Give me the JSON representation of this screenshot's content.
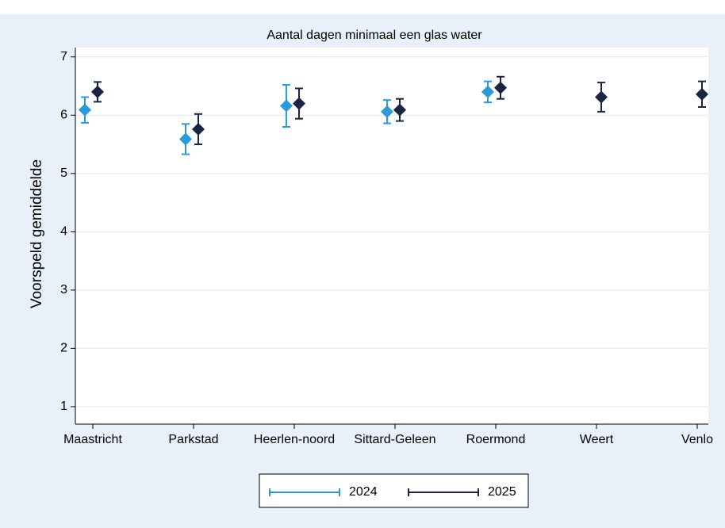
{
  "chart_data": {
    "type": "errorbar",
    "title": "Aantal dagen minimaal een glas water",
    "y_label": "Voorspeld gemiddelde",
    "categories": [
      "Maastricht",
      "Parkstad",
      "Heerlen-noord",
      "Sittard-Geleen",
      "Roermond",
      "Weert",
      "Venlo"
    ],
    "series": [
      {
        "name": "2024",
        "color": "#2b9ad6",
        "values": [
          6.09,
          5.59,
          6.16,
          6.06,
          6.4,
          null,
          null
        ],
        "errors": [
          0.22,
          0.26,
          0.36,
          0.2,
          0.18,
          null,
          null
        ]
      },
      {
        "name": "2025",
        "color": "#1a2542",
        "values": [
          6.4,
          5.76,
          6.2,
          6.09,
          6.47,
          6.31,
          6.36
        ],
        "errors": [
          0.17,
          0.26,
          0.26,
          0.19,
          0.19,
          0.25,
          0.22
        ]
      }
    ],
    "ylim": [
      0.7,
      7.16
    ],
    "yticks": [
      1,
      2,
      3,
      4,
      5,
      6,
      7
    ],
    "grid": true,
    "legend": "bottom"
  }
}
